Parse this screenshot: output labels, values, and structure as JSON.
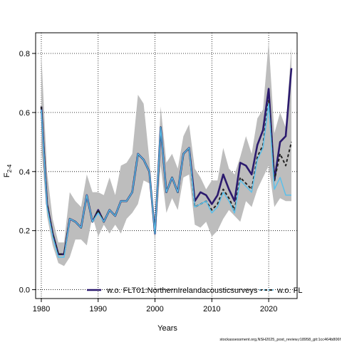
{
  "chart_data": {
    "type": "line",
    "title": "",
    "xlabel": "Years",
    "ylabel_main": "F",
    "ylabel_sub": "2-4",
    "xlim": [
      1979,
      2025
    ],
    "ylim": [
      -0.03,
      0.87
    ],
    "x_ticks": [
      1980,
      1990,
      2000,
      2010,
      2020
    ],
    "y_ticks": [
      0.0,
      0.2,
      0.4,
      0.6,
      0.8
    ],
    "grid": true,
    "x": [
      1980,
      1981,
      1982,
      1983,
      1984,
      1985,
      1986,
      1987,
      1988,
      1989,
      1990,
      1991,
      1992,
      1993,
      1994,
      1995,
      1996,
      1997,
      1998,
      1999,
      2000,
      2001,
      2002,
      2003,
      2004,
      2005,
      2006,
      2007,
      2008,
      2009,
      2010,
      2011,
      2012,
      2013,
      2014,
      2015,
      2016,
      2017,
      2018,
      2019,
      2020,
      2021,
      2022,
      2023,
      2024
    ],
    "band": {
      "lower": [
        0.48,
        0.25,
        0.15,
        0.09,
        0.08,
        0.11,
        0.17,
        0.17,
        0.15,
        0.25,
        0.18,
        0.22,
        0.19,
        0.22,
        0.19,
        0.24,
        0.26,
        0.29,
        0.37,
        0.36,
        0.16,
        0.42,
        0.26,
        0.31,
        0.27,
        0.38,
        0.39,
        0.22,
        0.21,
        0.23,
        0.18,
        0.2,
        0.24,
        0.27,
        0.25,
        0.23,
        0.3,
        0.28,
        0.34,
        0.38,
        0.42,
        0.28,
        0.31,
        0.3,
        0.3
      ],
      "upper": [
        0.8,
        0.4,
        0.24,
        0.16,
        0.16,
        0.33,
        0.3,
        0.28,
        0.39,
        0.33,
        0.33,
        0.32,
        0.38,
        0.32,
        0.42,
        0.43,
        0.46,
        0.66,
        0.63,
        0.44,
        0.21,
        0.62,
        0.43,
        0.46,
        0.41,
        0.52,
        0.56,
        0.41,
        0.38,
        0.34,
        0.37,
        0.37,
        0.48,
        0.41,
        0.39,
        0.45,
        0.52,
        0.46,
        0.58,
        0.61,
        0.84,
        0.53,
        0.6,
        0.55,
        0.82
      ]
    },
    "series": [
      {
        "name": "w.o. FLT01:NorthernIrelandacousticsurveys",
        "color": "#2b1a6e",
        "style": "solid",
        "values": [
          0.62,
          0.29,
          0.19,
          0.12,
          0.12,
          0.24,
          0.23,
          0.21,
          0.32,
          0.23,
          0.27,
          0.23,
          0.27,
          0.25,
          0.3,
          0.3,
          0.33,
          0.46,
          0.44,
          0.4,
          0.19,
          0.55,
          0.33,
          0.38,
          0.33,
          0.46,
          0.48,
          0.3,
          0.33,
          0.32,
          0.29,
          0.32,
          0.39,
          0.34,
          0.3,
          0.43,
          0.42,
          0.39,
          0.49,
          0.54,
          0.68,
          0.37,
          0.5,
          0.52,
          0.75
        ]
      },
      {
        "name": "",
        "color": "#222222",
        "style": "dashed",
        "values": [
          0.62,
          0.29,
          0.19,
          0.12,
          0.12,
          0.24,
          0.23,
          0.21,
          0.32,
          0.23,
          0.27,
          0.23,
          0.27,
          0.25,
          0.3,
          0.3,
          0.33,
          0.46,
          0.44,
          0.4,
          0.19,
          0.55,
          0.33,
          0.38,
          0.33,
          0.46,
          0.48,
          0.28,
          0.29,
          0.3,
          0.27,
          0.29,
          0.34,
          0.31,
          0.27,
          0.38,
          0.36,
          0.34,
          0.45,
          0.49,
          0.64,
          0.37,
          0.46,
          0.42,
          0.5
        ]
      },
      {
        "name": "w.o. FL",
        "color": "#5bc0eb",
        "style": "solid",
        "values": [
          0.61,
          0.28,
          0.18,
          0.11,
          0.11,
          0.24,
          0.23,
          0.21,
          0.32,
          0.23,
          0.26,
          0.23,
          0.27,
          0.25,
          0.3,
          0.3,
          0.33,
          0.46,
          0.44,
          0.4,
          0.19,
          0.55,
          0.33,
          0.38,
          0.33,
          0.46,
          0.48,
          0.28,
          0.29,
          0.3,
          0.26,
          0.28,
          0.33,
          0.3,
          0.26,
          0.37,
          0.35,
          0.33,
          0.44,
          0.48,
          0.63,
          0.34,
          0.38,
          0.32,
          0.32
        ]
      }
    ],
    "legend": {
      "placement": "bottom",
      "entries": [
        "w.o. FLT01:NorthernIrelandacousticsurveys",
        "w.o. FL"
      ]
    }
  },
  "footer": "stockassessment.org,NSH2025_post_review,r18958_git:1cc464b806f"
}
